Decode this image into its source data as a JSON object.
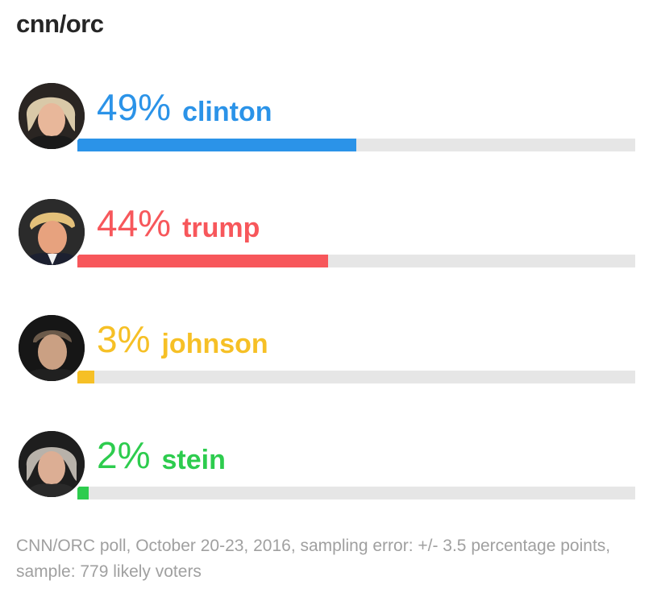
{
  "header": {
    "title": "cnn/orc"
  },
  "colors": {
    "clinton": "#2b93e8",
    "trump": "#f7575b",
    "johnson": "#f6c026",
    "stein": "#2dcc4e",
    "track": "#e6e6e6"
  },
  "chart_data": {
    "type": "bar",
    "title": "cnn/orc",
    "orientation": "horizontal",
    "categories": [
      "clinton",
      "trump",
      "johnson",
      "stein"
    ],
    "values": [
      49,
      44,
      3,
      2
    ],
    "value_labels": [
      "49%",
      "44%",
      "3%",
      "2%"
    ],
    "xlim": [
      0,
      100
    ],
    "grid": false,
    "legend": "none"
  },
  "candidates": [
    {
      "name": "clinton",
      "pct_label": "49%",
      "value": 49,
      "color": "#2b93e8",
      "avatar_icon": "clinton-photo-icon"
    },
    {
      "name": "trump",
      "pct_label": "44%",
      "value": 44,
      "color": "#f7575b",
      "avatar_icon": "trump-photo-icon"
    },
    {
      "name": "johnson",
      "pct_label": "3%",
      "value": 3,
      "color": "#f6c026",
      "avatar_icon": "johnson-photo-icon"
    },
    {
      "name": "stein",
      "pct_label": "2%",
      "value": 2,
      "color": "#2dcc4e",
      "avatar_icon": "stein-photo-icon"
    }
  ],
  "footer": {
    "note": "CNN/ORC poll, October 20-23, 2016, sampling error: +/- 3.5 percentage points, sample: 779 likely voters"
  }
}
